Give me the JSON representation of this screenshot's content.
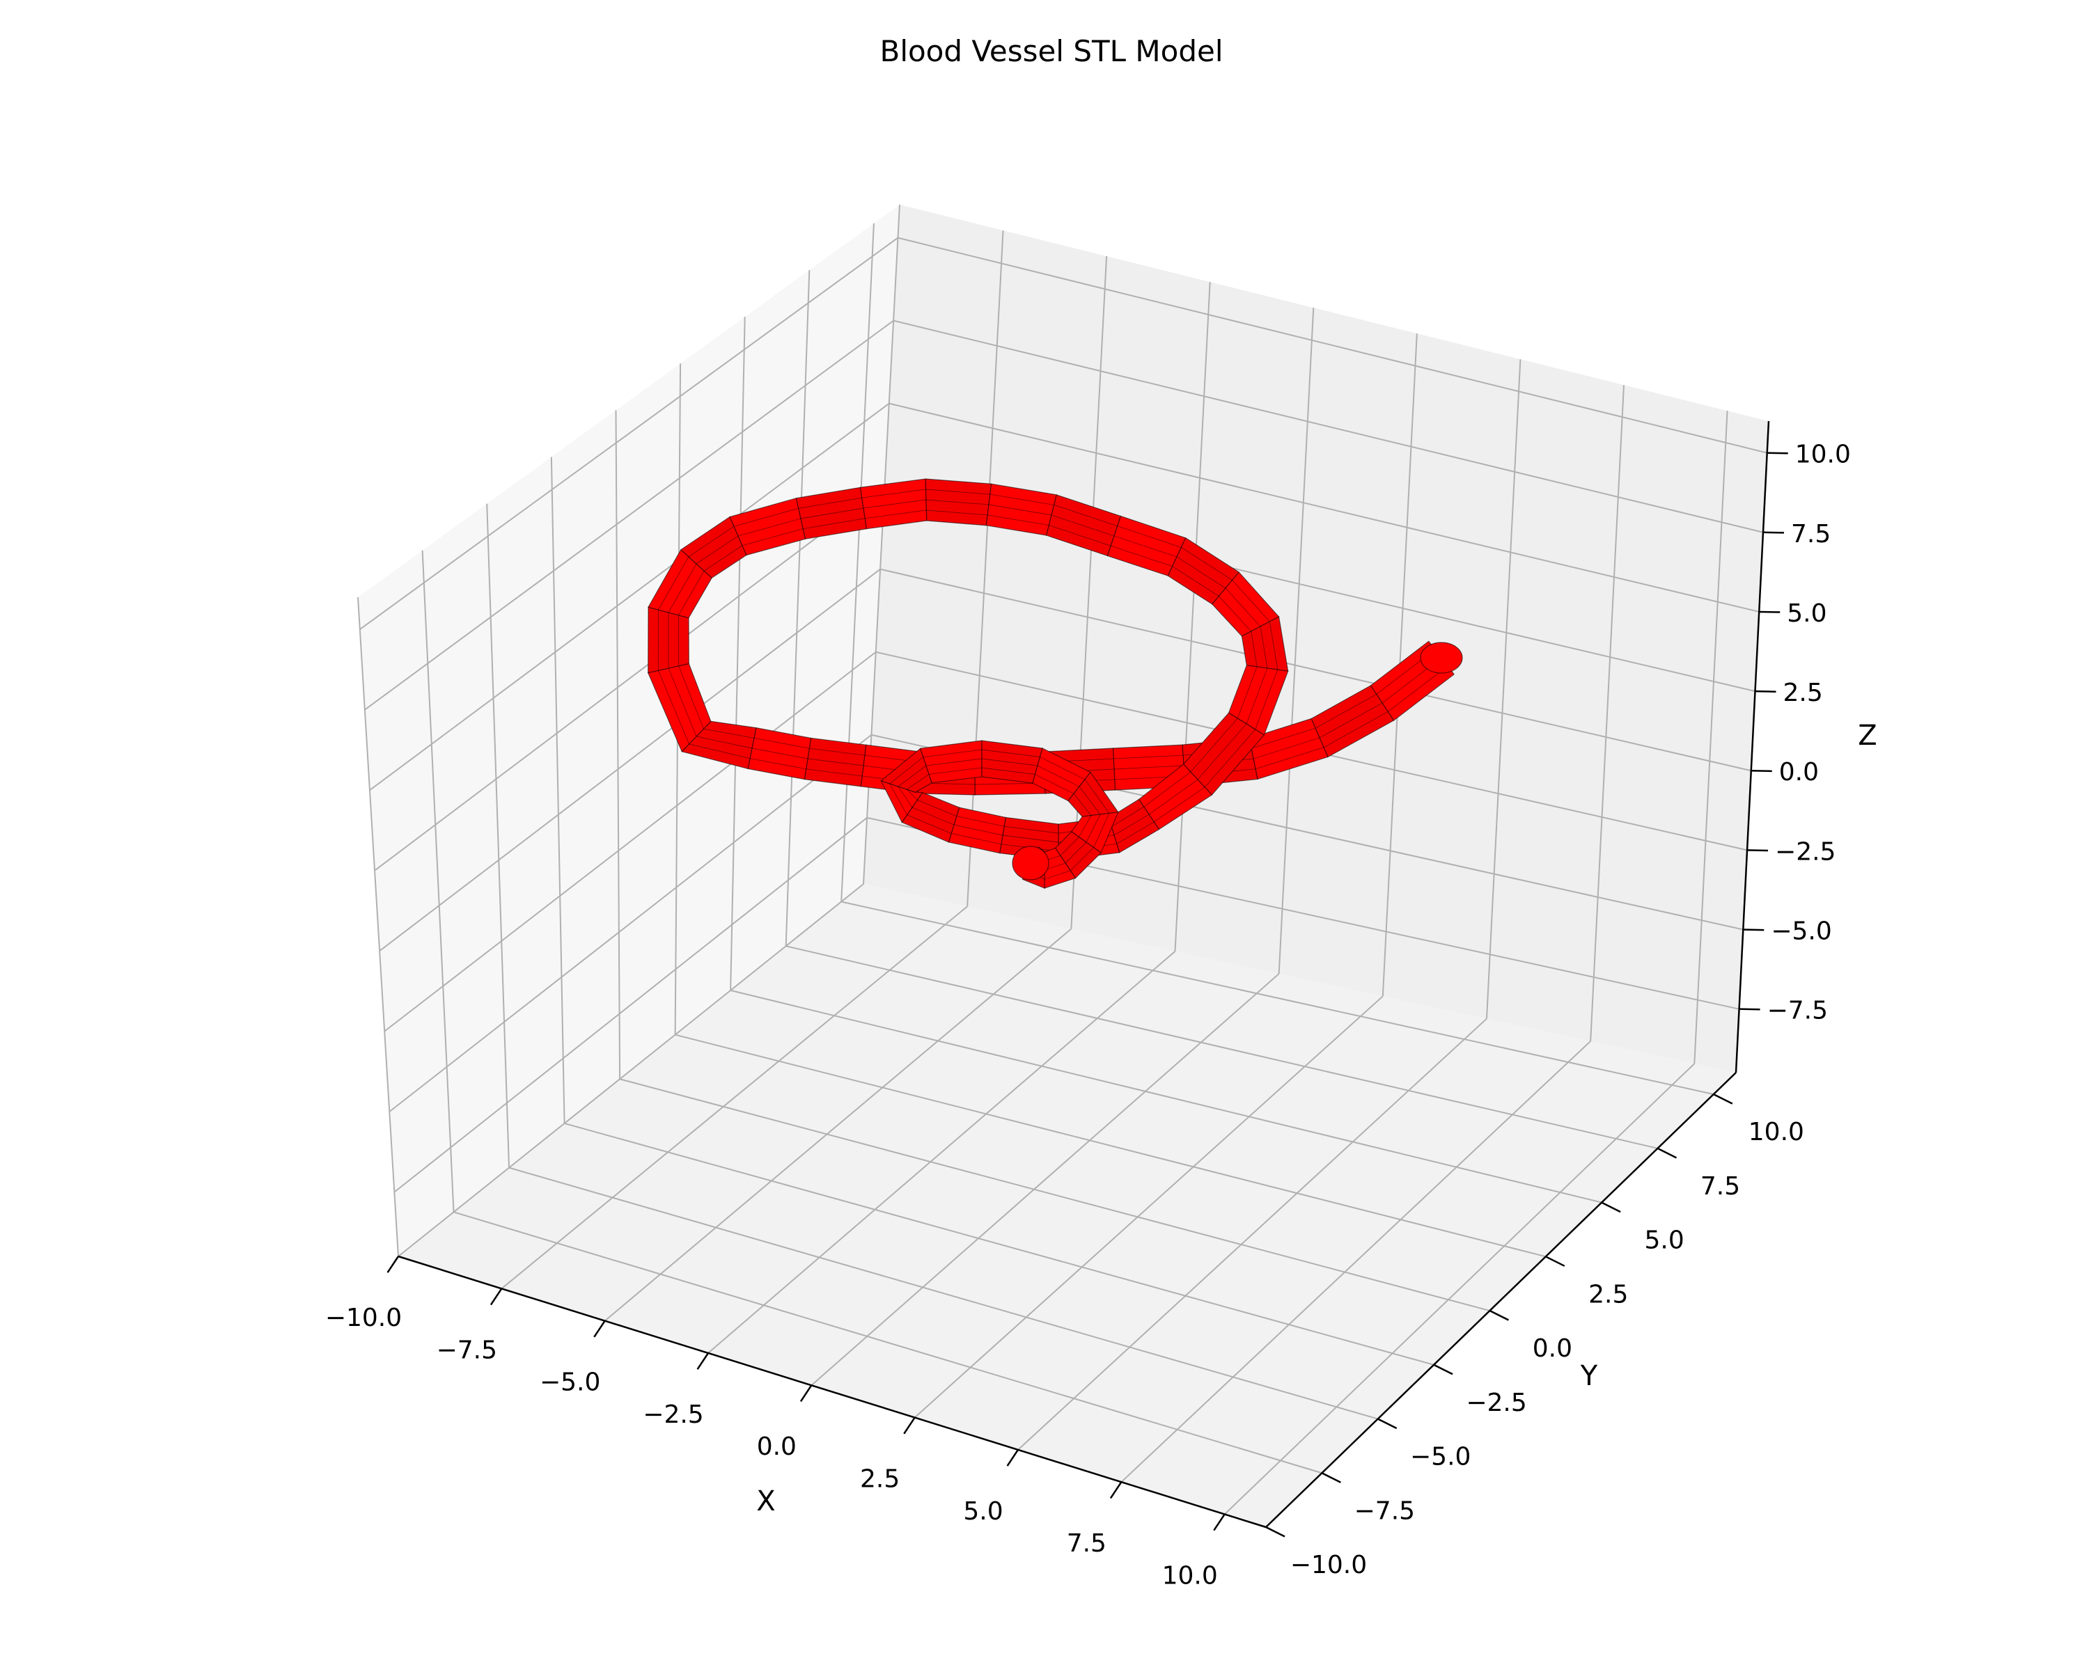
{
  "chart_data": {
    "type": "3d-surface",
    "title": "Blood Vessel STL Model",
    "xlabel": "X",
    "ylabel": "Y",
    "zlabel": "Z",
    "xlim": [
      -10,
      11
    ],
    "ylim": [
      -10,
      11
    ],
    "zlim": [
      -9.5,
      11
    ],
    "x_ticks": [
      "−10.0",
      "−7.5",
      "−5.0",
      "−2.5",
      "0.0",
      "2.5",
      "5.0",
      "7.5",
      "10.0"
    ],
    "y_ticks": [
      "−10.0",
      "−7.5",
      "−5.0",
      "−2.5",
      "0.0",
      "2.5",
      "5.0",
      "7.5",
      "10.0"
    ],
    "z_ticks": [
      "−7.5",
      "−5.0",
      "−2.5",
      "0.0",
      "2.5",
      "5.0",
      "7.5",
      "10.0"
    ],
    "grid": true,
    "surface_color": "#ff0000",
    "edge_color": "#000000",
    "pane_colors": {
      "floor": "#f2f2f2",
      "back_left": "#f7f7f7",
      "back_right": "#efefef"
    }
  }
}
